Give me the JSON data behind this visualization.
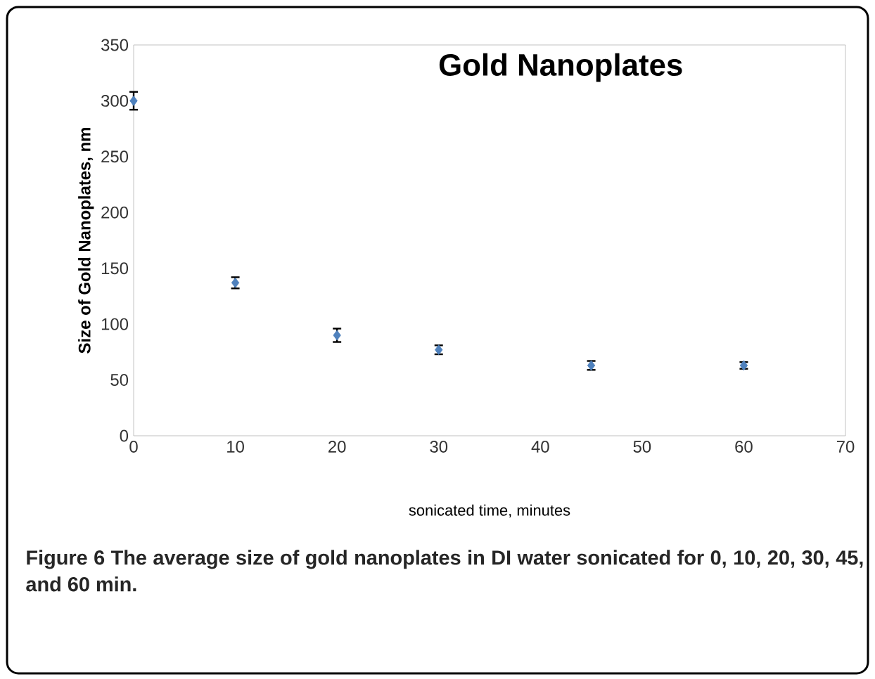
{
  "chart_data": {
    "type": "scatter",
    "title": "Gold Nanoplates",
    "xlabel": "sonicated time, minutes",
    "ylabel": "Size of Gold Nanoplates, nm",
    "annotations": [
      "Figure 6 The average size of gold nanoplates in DI water sonicated for 0, 10, 20, 30, 45, and 60 min."
    ],
    "x": [
      0,
      10,
      20,
      30,
      45,
      60
    ],
    "series": [
      {
        "color": "#4f81bd",
        "values": [
          300,
          137,
          90,
          77,
          63,
          63
        ],
        "errors": [
          8,
          5,
          6,
          4,
          4,
          3
        ]
      }
    ],
    "marker": "diamond",
    "grid": false,
    "xlim": [
      0,
      70
    ],
    "xticks": [
      0,
      10,
      20,
      30,
      40,
      50,
      60,
      70
    ],
    "ylim": [
      0,
      350
    ],
    "yticks": [
      0,
      50,
      100,
      150,
      200,
      250,
      300,
      350
    ]
  }
}
